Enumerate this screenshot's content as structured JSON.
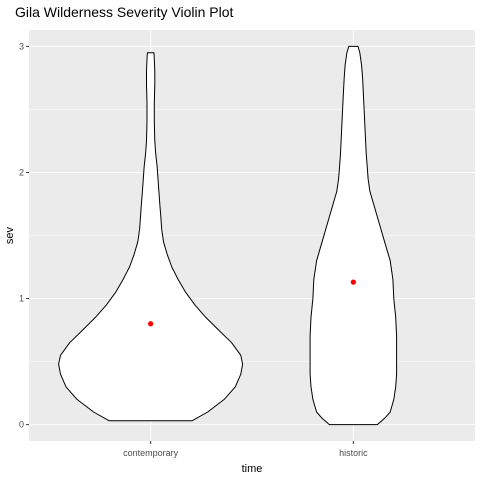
{
  "chart_data": {
    "type": "violin",
    "title": "Gila Wilderness Severity Violin Plot",
    "xlabel": "time",
    "ylabel": "sev",
    "categories": [
      "contemporary",
      "historic"
    ],
    "ylim": [
      -0.13,
      3.13
    ],
    "yticks": [
      0,
      1,
      2,
      3
    ],
    "grid": true,
    "legend": "none",
    "colors": {
      "panel_background": "#ebebeb",
      "grid": "#ffffff",
      "violin_fill": "#ffffff",
      "violin_outline": "#000000",
      "mean_point": "#ff0000"
    },
    "series": [
      {
        "category": "contemporary",
        "range": [
          0.03,
          2.95
        ],
        "mean": 0.8,
        "density": [
          [
            0.03,
            0.45
          ],
          [
            0.1,
            0.62
          ],
          [
            0.2,
            0.8
          ],
          [
            0.3,
            0.92
          ],
          [
            0.4,
            0.98
          ],
          [
            0.48,
            1.0
          ],
          [
            0.55,
            0.98
          ],
          [
            0.65,
            0.88
          ],
          [
            0.75,
            0.74
          ],
          [
            0.85,
            0.6
          ],
          [
            0.95,
            0.48
          ],
          [
            1.05,
            0.38
          ],
          [
            1.15,
            0.3
          ],
          [
            1.25,
            0.23
          ],
          [
            1.35,
            0.18
          ],
          [
            1.45,
            0.14
          ],
          [
            1.55,
            0.12
          ],
          [
            1.65,
            0.11
          ],
          [
            1.75,
            0.1
          ],
          [
            1.85,
            0.09
          ],
          [
            1.95,
            0.08
          ],
          [
            2.05,
            0.07
          ],
          [
            2.15,
            0.055
          ],
          [
            2.25,
            0.045
          ],
          [
            2.4,
            0.04
          ],
          [
            2.55,
            0.04
          ],
          [
            2.7,
            0.045
          ],
          [
            2.8,
            0.045
          ],
          [
            2.9,
            0.04
          ],
          [
            2.95,
            0.035
          ]
        ]
      },
      {
        "category": "historic",
        "range": [
          0.0,
          3.0
        ],
        "mean": 1.13,
        "density": [
          [
            0.0,
            0.26
          ],
          [
            0.05,
            0.34
          ],
          [
            0.1,
            0.4
          ],
          [
            0.2,
            0.44
          ],
          [
            0.3,
            0.46
          ],
          [
            0.4,
            0.47
          ],
          [
            0.55,
            0.47
          ],
          [
            0.7,
            0.47
          ],
          [
            0.85,
            0.46
          ],
          [
            1.0,
            0.44
          ],
          [
            1.15,
            0.43
          ],
          [
            1.3,
            0.4
          ],
          [
            1.45,
            0.34
          ],
          [
            1.6,
            0.28
          ],
          [
            1.75,
            0.22
          ],
          [
            1.85,
            0.18
          ],
          [
            1.95,
            0.16
          ],
          [
            2.05,
            0.15
          ],
          [
            2.15,
            0.14
          ],
          [
            2.3,
            0.13
          ],
          [
            2.45,
            0.12
          ],
          [
            2.6,
            0.11
          ],
          [
            2.75,
            0.1
          ],
          [
            2.85,
            0.09
          ],
          [
            2.95,
            0.07
          ],
          [
            3.0,
            0.05
          ]
        ]
      }
    ]
  }
}
